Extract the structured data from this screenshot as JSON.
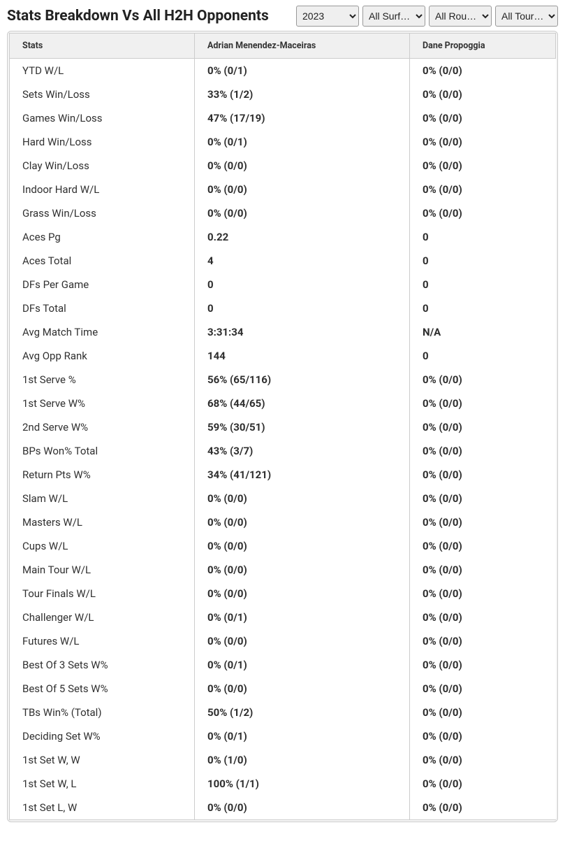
{
  "header": {
    "title": "Stats Breakdown Vs All H2H Opponents",
    "year_selected": "2023",
    "surface_selected": "All Surf…",
    "round_selected": "All Rou…",
    "tour_selected": "All Tour…"
  },
  "table": {
    "columns": [
      "Stats",
      "Adrian Menendez-Maceiras",
      "Dane Propoggia"
    ],
    "rows": [
      [
        "YTD W/L",
        "0% (0/1)",
        "0% (0/0)"
      ],
      [
        "Sets Win/Loss",
        "33% (1/2)",
        "0% (0/0)"
      ],
      [
        "Games Win/Loss",
        "47% (17/19)",
        "0% (0/0)"
      ],
      [
        "Hard Win/Loss",
        "0% (0/1)",
        "0% (0/0)"
      ],
      [
        "Clay Win/Loss",
        "0% (0/0)",
        "0% (0/0)"
      ],
      [
        "Indoor Hard W/L",
        "0% (0/0)",
        "0% (0/0)"
      ],
      [
        "Grass Win/Loss",
        "0% (0/0)",
        "0% (0/0)"
      ],
      [
        "Aces Pg",
        "0.22",
        "0"
      ],
      [
        "Aces Total",
        "4",
        "0"
      ],
      [
        "DFs Per Game",
        "0",
        "0"
      ],
      [
        "DFs Total",
        "0",
        "0"
      ],
      [
        "Avg Match Time",
        "3:31:34",
        "N/A"
      ],
      [
        "Avg Opp Rank",
        "144",
        "0"
      ],
      [
        "1st Serve %",
        "56% (65/116)",
        "0% (0/0)"
      ],
      [
        "1st Serve W%",
        "68% (44/65)",
        "0% (0/0)"
      ],
      [
        "2nd Serve W%",
        "59% (30/51)",
        "0% (0/0)"
      ],
      [
        "BPs Won% Total",
        "43% (3/7)",
        "0% (0/0)"
      ],
      [
        "Return Pts W%",
        "34% (41/121)",
        "0% (0/0)"
      ],
      [
        "Slam W/L",
        "0% (0/0)",
        "0% (0/0)"
      ],
      [
        "Masters W/L",
        "0% (0/0)",
        "0% (0/0)"
      ],
      [
        "Cups W/L",
        "0% (0/0)",
        "0% (0/0)"
      ],
      [
        "Main Tour W/L",
        "0% (0/0)",
        "0% (0/0)"
      ],
      [
        "Tour Finals W/L",
        "0% (0/0)",
        "0% (0/0)"
      ],
      [
        "Challenger W/L",
        "0% (0/1)",
        "0% (0/0)"
      ],
      [
        "Futures W/L",
        "0% (0/0)",
        "0% (0/0)"
      ],
      [
        "Best Of 3 Sets W%",
        "0% (0/1)",
        "0% (0/0)"
      ],
      [
        "Best Of 5 Sets W%",
        "0% (0/0)",
        "0% (0/0)"
      ],
      [
        "TBs Win% (Total)",
        "50% (1/2)",
        "0% (0/0)"
      ],
      [
        "Deciding Set W%",
        "0% (0/1)",
        "0% (0/0)"
      ],
      [
        "1st Set W, W",
        "0% (1/0)",
        "0% (0/0)"
      ],
      [
        "1st Set W, L",
        "100% (1/1)",
        "0% (0/0)"
      ],
      [
        "1st Set L, W",
        "0% (0/0)",
        "0% (0/0)"
      ]
    ]
  }
}
